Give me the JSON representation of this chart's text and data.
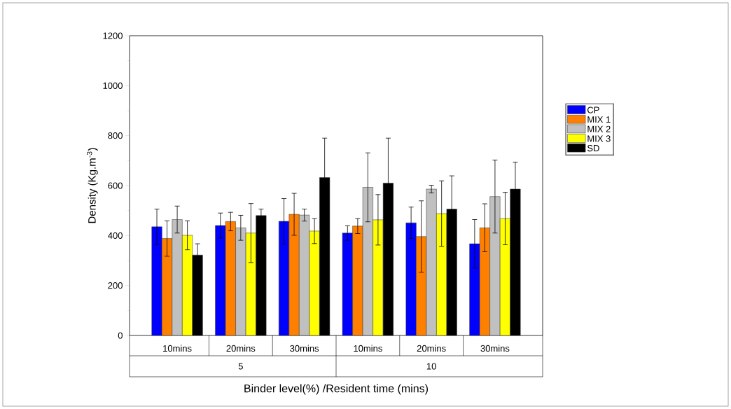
{
  "chart_data": {
    "type": "bar",
    "xlabel": "Binder level(%) /Resident time (mins)",
    "ylabel": "Density (Kg.m$^{-3}$)",
    "categories": [
      "10mins",
      "20mins",
      "30mins",
      "10mins",
      "20mins",
      "30mins"
    ],
    "annotations": [
      "5",
      "10"
    ],
    "series": [
      {
        "name": "CP",
        "color": "#0000ff",
        "values": [
          435,
          440,
          457,
          410,
          451,
          367
        ],
        "errors": [
          71,
          50,
          91,
          29,
          63,
          97
        ]
      },
      {
        "name": "MIX 1",
        "color": "#ff8000",
        "values": [
          388,
          456,
          485,
          438,
          396,
          431
        ],
        "errors": [
          71,
          37,
          84,
          30,
          143,
          96
        ]
      },
      {
        "name": "MIX 2",
        "color": "#c0c0c0",
        "values": [
          464,
          431,
          482,
          593,
          586,
          556
        ],
        "errors": [
          54,
          50,
          24,
          138,
          15,
          146
        ]
      },
      {
        "name": "MIX 3",
        "color": "#ffff00",
        "values": [
          401,
          410,
          418,
          463,
          488,
          468
        ],
        "errors": [
          58,
          118,
          50,
          101,
          131,
          105
        ]
      },
      {
        "name": "SD",
        "color": "#000000",
        "values": [
          322,
          480,
          632,
          610,
          506,
          586
        ],
        "errors": [
          45,
          26,
          158,
          180,
          133,
          108
        ]
      }
    ],
    "ylim": [
      0,
      1200
    ],
    "yticks": [
      0,
      200,
      400,
      600,
      800,
      1000,
      1200
    ],
    "legend": "right"
  }
}
